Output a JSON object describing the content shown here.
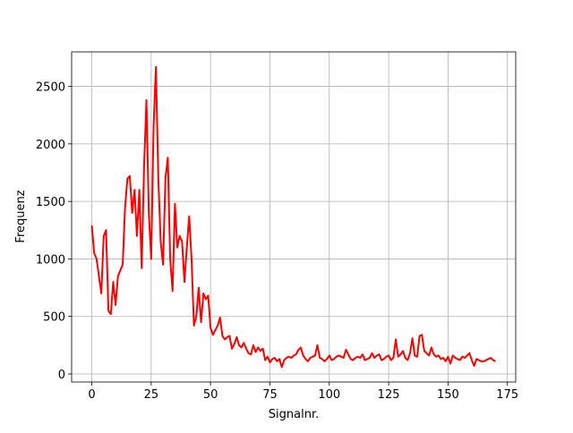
{
  "chart_data": {
    "type": "line",
    "xlabel": "Signalnr.",
    "ylabel": "Frequenz",
    "color": "#ff0000",
    "grid": true,
    "xlim": [
      -8.5,
      178.5
    ],
    "ylim": [
      -70,
      2800
    ],
    "xticks": [
      0,
      25,
      50,
      75,
      100,
      125,
      150,
      175
    ],
    "yticks": [
      0,
      500,
      1000,
      1500,
      2000,
      2500
    ],
    "x": [
      0,
      1,
      2,
      3,
      4,
      5,
      6,
      7,
      8,
      9,
      10,
      11,
      12,
      13,
      14,
      15,
      16,
      17,
      18,
      19,
      20,
      21,
      22,
      23,
      24,
      25,
      26,
      27,
      28,
      29,
      30,
      31,
      32,
      33,
      34,
      35,
      36,
      37,
      38,
      39,
      40,
      41,
      42,
      43,
      44,
      45,
      46,
      47,
      48,
      49,
      50,
      51,
      52,
      53,
      54,
      55,
      56,
      57,
      58,
      59,
      60,
      61,
      62,
      63,
      64,
      65,
      66,
      67,
      68,
      69,
      70,
      71,
      72,
      73,
      74,
      75,
      76,
      77,
      78,
      79,
      80,
      81,
      82,
      83,
      84,
      85,
      86,
      87,
      88,
      89,
      90,
      91,
      92,
      93,
      94,
      95,
      96,
      97,
      98,
      99,
      100,
      101,
      102,
      103,
      104,
      105,
      106,
      107,
      108,
      109,
      110,
      111,
      112,
      113,
      114,
      115,
      116,
      117,
      118,
      119,
      120,
      121,
      122,
      123,
      124,
      125,
      126,
      127,
      128,
      129,
      130,
      131,
      132,
      133,
      134,
      135,
      136,
      137,
      138,
      139,
      140,
      141,
      142,
      143,
      144,
      145,
      146,
      147,
      148,
      149,
      150,
      151,
      152,
      153,
      154,
      155,
      156,
      157,
      158,
      159,
      160,
      161,
      162,
      163,
      164,
      165,
      166,
      167,
      168,
      169,
      170
    ],
    "values": [
      1290,
      1050,
      1000,
      850,
      700,
      1200,
      1250,
      550,
      520,
      800,
      600,
      850,
      900,
      950,
      1450,
      1700,
      1720,
      1400,
      1600,
      1200,
      1600,
      920,
      1800,
      2380,
      1400,
      1000,
      2150,
      2670,
      1700,
      1150,
      950,
      1700,
      1880,
      1000,
      720,
      1480,
      1100,
      1200,
      1150,
      800,
      1100,
      1370,
      1000,
      420,
      500,
      750,
      450,
      700,
      650,
      680,
      400,
      340,
      380,
      420,
      490,
      330,
      300,
      320,
      330,
      220,
      260,
      320,
      250,
      230,
      270,
      220,
      180,
      170,
      250,
      190,
      230,
      200,
      220,
      120,
      150,
      100,
      130,
      140,
      110,
      130,
      60,
      120,
      140,
      150,
      140,
      160,
      170,
      210,
      230,
      160,
      130,
      110,
      140,
      150,
      160,
      250,
      140,
      130,
      110,
      130,
      160,
      120,
      130,
      150,
      160,
      150,
      140,
      210,
      170,
      130,
      120,
      140,
      150,
      140,
      170,
      120,
      130,
      140,
      180,
      140,
      160,
      170,
      120,
      130,
      150,
      160,
      120,
      140,
      300,
      150,
      170,
      200,
      140,
      120,
      180,
      310,
      160,
      150,
      330,
      340,
      200,
      180,
      160,
      230,
      170,
      150,
      160,
      130,
      140,
      110,
      150,
      90,
      160,
      140,
      130,
      120,
      150,
      140,
      160,
      180,
      120,
      70,
      130,
      120,
      110,
      110,
      120,
      130,
      140,
      120,
      110
    ]
  }
}
